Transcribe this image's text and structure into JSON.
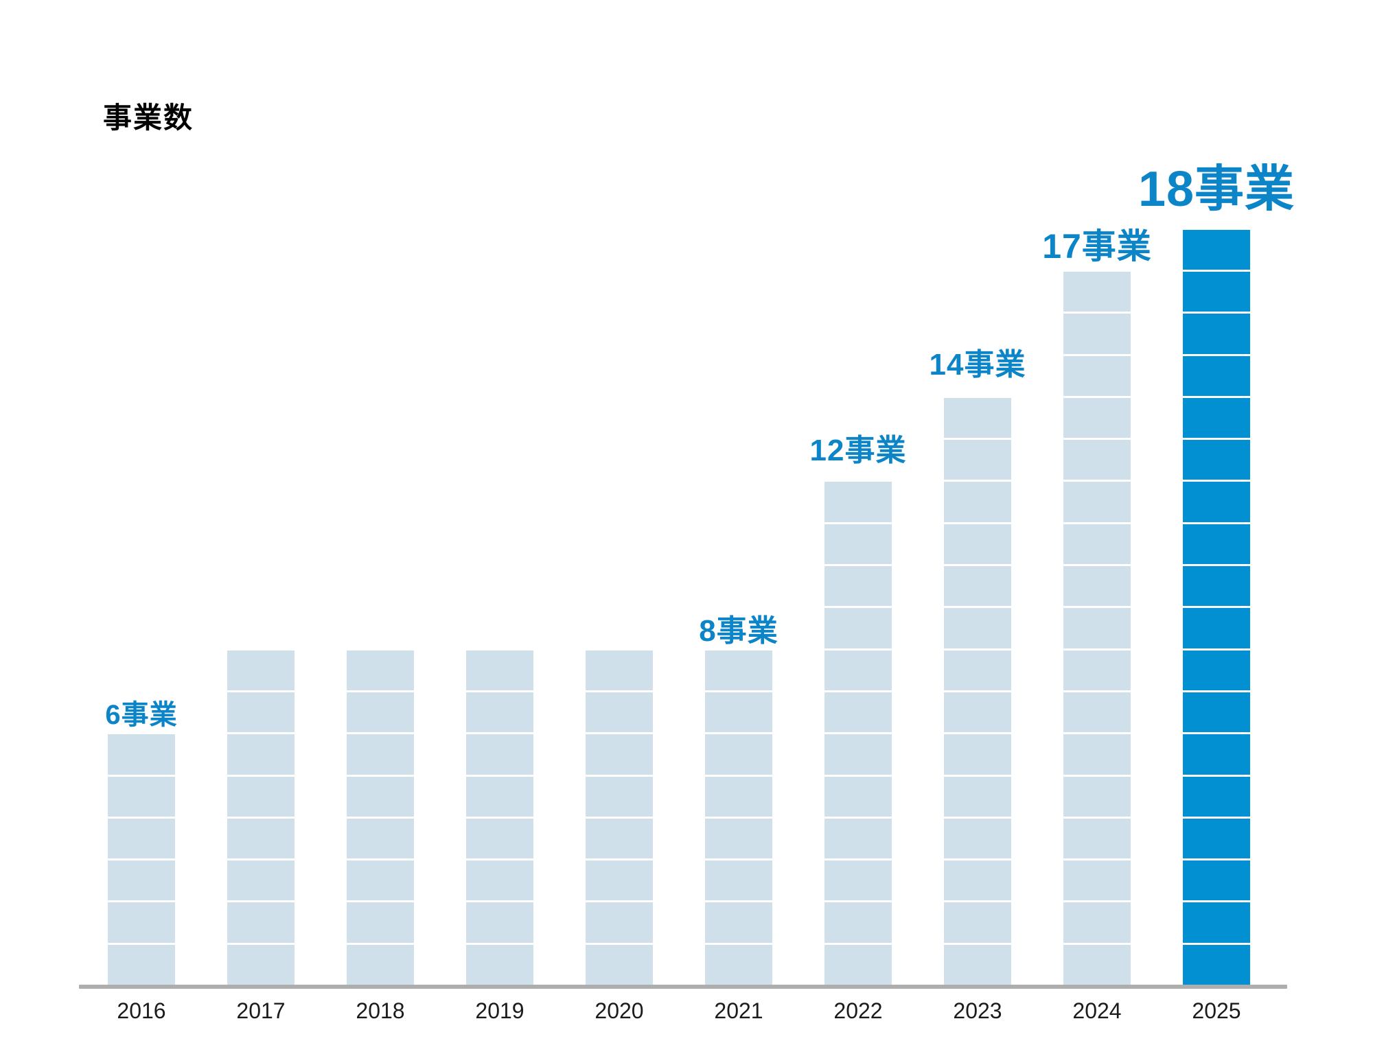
{
  "title": "事業数",
  "chart_data": {
    "type": "bar",
    "title": "事業数",
    "categories": [
      "2016",
      "2017",
      "2018",
      "2019",
      "2020",
      "2021",
      "2022",
      "2023",
      "2024",
      "2025"
    ],
    "values": [
      6,
      8,
      8,
      8,
      8,
      8,
      12,
      14,
      17,
      18
    ],
    "unit_suffix": "事業",
    "value_labels": [
      "6事業",
      "",
      "",
      "",
      "",
      "8事業",
      "12事業",
      "14事業",
      "17事業",
      "18事業"
    ],
    "highlight_index": 9,
    "segmented_units": true,
    "legend": false,
    "grid": false,
    "xlabel": "",
    "ylabel": "",
    "colors": {
      "bar_default": "#cfe0ea",
      "bar_highlight": "#0390d2",
      "value_label": "#0b85c7",
      "axis_line": "#aeaeae",
      "year_label": "#1b1b1b",
      "segment_gap": "#ffffff",
      "title": "#000000"
    }
  }
}
